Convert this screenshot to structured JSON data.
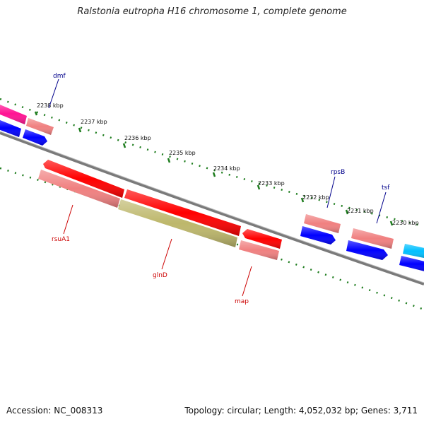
{
  "title": "Ralstonia eutropha H16 chromosome 1, complete genome",
  "footer": {
    "accession": "Accession: NC_008313",
    "summary": "Topology: circular; Length: 4,052,032 bp; Genes: 3,711"
  },
  "colors": {
    "backbone": "#7a7a7a",
    "ruler": "#1e7d1e",
    "label_above": "#00008b",
    "label_below": "#cc0000",
    "gene_red": "#ff0000",
    "gene_pink": "#f08080",
    "gene_olive": "#bdb76b",
    "gene_blue": "#0000ff",
    "gene_magenta": "#ff1493",
    "gene_cyan": "#00bfff"
  },
  "ticks": [
    "2238 kbp",
    "2237 kbp",
    "2236 kbp",
    "2235 kbp",
    "2234 kbp",
    "2233 kbp",
    "2232 kbp",
    "2231 kbp",
    "2230 kbp"
  ],
  "gene_labels": {
    "dmf": "dmf",
    "rpsB": "rpsB",
    "tsf": "tsf",
    "rsuA1": "rsuA1",
    "glnD": "glnD",
    "map": "map"
  }
}
